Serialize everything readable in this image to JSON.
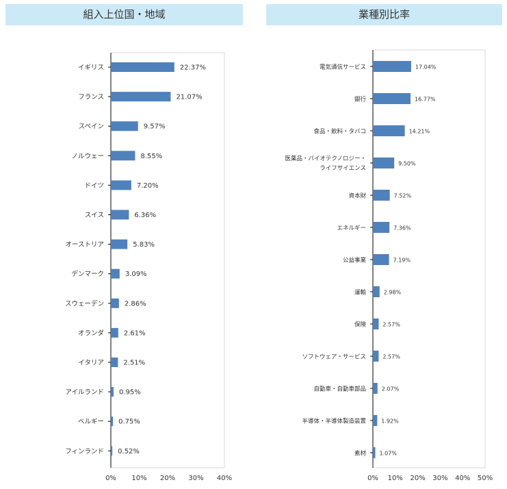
{
  "chart_data": [
    {
      "type": "bar",
      "orientation": "horizontal",
      "title": "組入上位国・地域",
      "categories": [
        "イギリス",
        "フランス",
        "スペイン",
        "ノルウェー",
        "ドイツ",
        "スイス",
        "オーストリア",
        "デンマーク",
        "スウェーデン",
        "オランダ",
        "イタリア",
        "アイルランド",
        "ベルギー",
        "フィンランド"
      ],
      "values": [
        22.37,
        21.07,
        9.57,
        8.55,
        7.2,
        6.36,
        5.83,
        3.09,
        2.86,
        2.61,
        2.51,
        0.95,
        0.75,
        0.52
      ],
      "value_labels": [
        "22.37%",
        "21.07%",
        "9.57%",
        "8.55%",
        "7.20%",
        "6.36%",
        "5.83%",
        "3.09%",
        "2.86%",
        "2.61%",
        "2.51%",
        "0.95%",
        "0.75%",
        "0.52%"
      ],
      "xlim": [
        0,
        40
      ],
      "ticks": [
        "0%",
        "10%",
        "20%",
        "30%",
        "40%"
      ],
      "bar_color": "#4f81bd"
    },
    {
      "type": "bar",
      "orientation": "horizontal",
      "title": "業種別比率",
      "categories": [
        [
          "電気通信サービス"
        ],
        [
          "銀行"
        ],
        [
          "食品・飲料・タバコ"
        ],
        [
          "医薬品・バイオテクノロジー・",
          "ライフサイエンス"
        ],
        [
          "資本財"
        ],
        [
          "エネルギー"
        ],
        [
          "公益事業"
        ],
        [
          "運輸"
        ],
        [
          "保険"
        ],
        [
          "ソフトウェア・サービス"
        ],
        [
          "自動車・自動車部品"
        ],
        [
          "半導体・半導体製造装置"
        ],
        [
          "素材"
        ]
      ],
      "values": [
        17.04,
        16.77,
        14.21,
        9.5,
        7.52,
        7.36,
        7.19,
        2.98,
        2.57,
        2.57,
        2.07,
        1.92,
        1.07
      ],
      "value_labels": [
        "17.04%",
        "16.77%",
        "14.21%",
        "9.50%",
        "7.52%",
        "7.36%",
        "7.19%",
        "2.98%",
        "2.57%",
        "2.57%",
        "2.07%",
        "1.92%",
        "1.07%"
      ],
      "xlim": [
        0,
        50
      ],
      "ticks": [
        "0%",
        "10%",
        "20%",
        "30%",
        "40%",
        "50%"
      ],
      "bar_color": "#4f81bd"
    }
  ]
}
